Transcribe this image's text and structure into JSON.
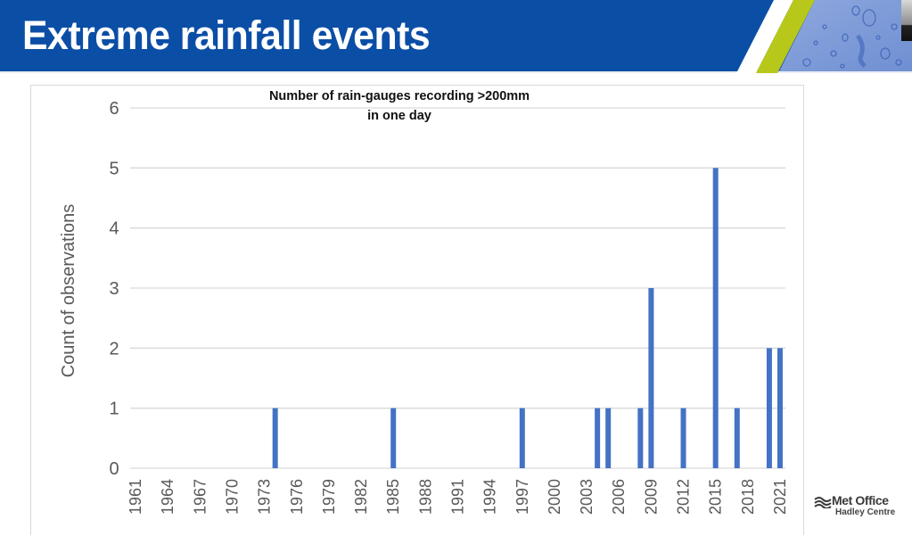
{
  "slide": {
    "title": "Extreme rainfall events"
  },
  "branding": {
    "logo_text": "Met Office",
    "logo_subtext": "Hadley Centre"
  },
  "colors": {
    "banner": "#0b4ea6",
    "accent_stripe": "#b8c81a",
    "bar": "#4472c4",
    "grid": "#d9d9d9",
    "tick_text": "#595959"
  },
  "chart_data": {
    "type": "bar",
    "title_lines": [
      "Number of rain-gauges recording >200mm",
      "in one day"
    ],
    "xlabel": "",
    "ylabel": "Count of observations",
    "ylim": [
      0,
      6
    ],
    "yticks": [
      0,
      1,
      2,
      3,
      4,
      5,
      6
    ],
    "grid": true,
    "legend": "none",
    "x_start": 1961,
    "x_end": 2021,
    "xtick_labels": [
      "1961",
      "1964",
      "1967",
      "1970",
      "1973",
      "1976",
      "1979",
      "1982",
      "1985",
      "1988",
      "1991",
      "1994",
      "1997",
      "2000",
      "2003",
      "2006",
      "2009",
      "2012",
      "2015",
      "2018",
      "2021"
    ],
    "categories": [
      "1961",
      "1962",
      "1963",
      "1964",
      "1965",
      "1966",
      "1967",
      "1968",
      "1969",
      "1970",
      "1971",
      "1972",
      "1973",
      "1974",
      "1975",
      "1976",
      "1977",
      "1978",
      "1979",
      "1980",
      "1981",
      "1982",
      "1983",
      "1984",
      "1985",
      "1986",
      "1987",
      "1988",
      "1989",
      "1990",
      "1991",
      "1992",
      "1993",
      "1994",
      "1995",
      "1996",
      "1997",
      "1998",
      "1999",
      "2000",
      "2001",
      "2002",
      "2003",
      "2004",
      "2005",
      "2006",
      "2007",
      "2008",
      "2009",
      "2010",
      "2011",
      "2012",
      "2013",
      "2014",
      "2015",
      "2016",
      "2017",
      "2018",
      "2019",
      "2020",
      "2021"
    ],
    "values": [
      0,
      0,
      0,
      0,
      0,
      0,
      0,
      0,
      0,
      0,
      0,
      0,
      0,
      1,
      0,
      0,
      0,
      0,
      0,
      0,
      0,
      0,
      0,
      0,
      1,
      0,
      0,
      0,
      0,
      0,
      0,
      0,
      0,
      0,
      0,
      0,
      1,
      0,
      0,
      0,
      0,
      0,
      0,
      1,
      1,
      0,
      0,
      1,
      3,
      0,
      0,
      1,
      0,
      0,
      5,
      0,
      1,
      0,
      0,
      2,
      2
    ]
  }
}
